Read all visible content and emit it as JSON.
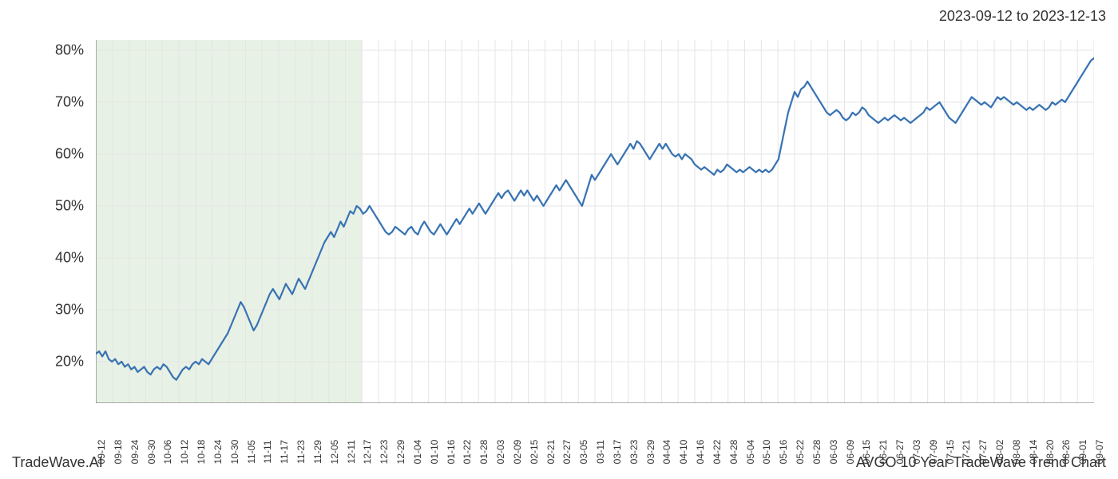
{
  "header": {
    "date_range": "2023-09-12 to 2023-12-13"
  },
  "footer": {
    "left": "TradeWave.AI",
    "right": "AVGO 10 Year TradeWave Trend Chart"
  },
  "chart": {
    "type": "line",
    "background_color": "#ffffff",
    "grid_color": "#e5e5e5",
    "axis_color": "#666666",
    "line_color": "#3873b3",
    "line_width": 2.2,
    "highlight_band": {
      "fill": "#d9e8d4",
      "opacity": 0.6,
      "x_start": 0,
      "x_end": 16
    },
    "y_axis": {
      "min": 12,
      "max": 82,
      "ticks": [
        20,
        30,
        40,
        50,
        60,
        70,
        80
      ],
      "tick_labels": [
        "20%",
        "30%",
        "40%",
        "50%",
        "60%",
        "70%",
        "80%"
      ],
      "label_fontsize": 18,
      "label_color": "#333333"
    },
    "x_axis": {
      "tick_labels": [
        "09-12",
        "09-18",
        "09-24",
        "09-30",
        "10-06",
        "10-12",
        "10-18",
        "10-24",
        "10-30",
        "11-05",
        "11-11",
        "11-17",
        "11-23",
        "11-29",
        "12-05",
        "12-11",
        "12-17",
        "12-23",
        "12-29",
        "01-04",
        "01-10",
        "01-16",
        "01-22",
        "01-28",
        "02-03",
        "02-09",
        "02-15",
        "02-21",
        "02-27",
        "03-05",
        "03-11",
        "03-17",
        "03-23",
        "03-29",
        "04-04",
        "04-10",
        "04-16",
        "04-22",
        "04-28",
        "05-04",
        "05-10",
        "05-16",
        "05-22",
        "05-28",
        "06-03",
        "06-09",
        "06-15",
        "06-21",
        "06-27",
        "07-03",
        "07-09",
        "07-15",
        "07-21",
        "07-27",
        "08-02",
        "08-08",
        "08-14",
        "08-20",
        "08-26",
        "09-01",
        "09-07"
      ],
      "label_fontsize": 12,
      "label_color": "#333333",
      "rotation": -90
    },
    "series": {
      "values": [
        21.5,
        22.0,
        21.0,
        22.0,
        20.5,
        20.0,
        20.5,
        19.5,
        20.0,
        19.0,
        19.5,
        18.5,
        19.0,
        18.0,
        18.5,
        19.0,
        18.0,
        17.5,
        18.5,
        19.0,
        18.5,
        19.5,
        19.0,
        18.0,
        17.0,
        16.5,
        17.5,
        18.5,
        19.0,
        18.5,
        19.5,
        20.0,
        19.5,
        20.5,
        20.0,
        19.5,
        20.5,
        21.5,
        22.5,
        23.5,
        24.5,
        25.5,
        27.0,
        28.5,
        30.0,
        31.5,
        30.5,
        29.0,
        27.5,
        26.0,
        27.0,
        28.5,
        30.0,
        31.5,
        33.0,
        34.0,
        33.0,
        32.0,
        33.5,
        35.0,
        34.0,
        33.0,
        34.5,
        36.0,
        35.0,
        34.0,
        35.5,
        37.0,
        38.5,
        40.0,
        41.5,
        43.0,
        44.0,
        45.0,
        44.0,
        45.5,
        47.0,
        46.0,
        47.5,
        49.0,
        48.5,
        50.0,
        49.5,
        48.5,
        49.0,
        50.0,
        49.0,
        48.0,
        47.0,
        46.0,
        45.0,
        44.5,
        45.0,
        46.0,
        45.5,
        45.0,
        44.5,
        45.5,
        46.0,
        45.0,
        44.5,
        46.0,
        47.0,
        46.0,
        45.0,
        44.5,
        45.5,
        46.5,
        45.5,
        44.5,
        45.5,
        46.5,
        47.5,
        46.5,
        47.5,
        48.5,
        49.5,
        48.5,
        49.5,
        50.5,
        49.5,
        48.5,
        49.5,
        50.5,
        51.5,
        52.5,
        51.5,
        52.5,
        53.0,
        52.0,
        51.0,
        52.0,
        53.0,
        52.0,
        53.0,
        52.0,
        51.0,
        52.0,
        51.0,
        50.0,
        51.0,
        52.0,
        53.0,
        54.0,
        53.0,
        54.0,
        55.0,
        54.0,
        53.0,
        52.0,
        51.0,
        50.0,
        52.0,
        54.0,
        56.0,
        55.0,
        56.0,
        57.0,
        58.0,
        59.0,
        60.0,
        59.0,
        58.0,
        59.0,
        60.0,
        61.0,
        62.0,
        61.0,
        62.5,
        62.0,
        61.0,
        60.0,
        59.0,
        60.0,
        61.0,
        62.0,
        61.0,
        62.0,
        61.0,
        60.0,
        59.5,
        60.0,
        59.0,
        60.0,
        59.5,
        59.0,
        58.0,
        57.5,
        57.0,
        57.5,
        57.0,
        56.5,
        56.0,
        57.0,
        56.5,
        57.0,
        58.0,
        57.5,
        57.0,
        56.5,
        57.0,
        56.5,
        57.0,
        57.5,
        57.0,
        56.5,
        57.0,
        56.5,
        57.0,
        56.5,
        57.0,
        58.0,
        59.0,
        62.0,
        65.0,
        68.0,
        70.0,
        72.0,
        71.0,
        72.5,
        73.0,
        74.0,
        73.0,
        72.0,
        71.0,
        70.0,
        69.0,
        68.0,
        67.5,
        68.0,
        68.5,
        68.0,
        67.0,
        66.5,
        67.0,
        68.0,
        67.5,
        68.0,
        69.0,
        68.5,
        67.5,
        67.0,
        66.5,
        66.0,
        66.5,
        67.0,
        66.5,
        67.0,
        67.5,
        67.0,
        66.5,
        67.0,
        66.5,
        66.0,
        66.5,
        67.0,
        67.5,
        68.0,
        69.0,
        68.5,
        69.0,
        69.5,
        70.0,
        69.0,
        68.0,
        67.0,
        66.5,
        66.0,
        67.0,
        68.0,
        69.0,
        70.0,
        71.0,
        70.5,
        70.0,
        69.5,
        70.0,
        69.5,
        69.0,
        70.0,
        71.0,
        70.5,
        71.0,
        70.5,
        70.0,
        69.5,
        70.0,
        69.5,
        69.0,
        68.5,
        69.0,
        68.5,
        69.0,
        69.5,
        69.0,
        68.5,
        69.0,
        70.0,
        69.5,
        70.0,
        70.5,
        70.0,
        71.0,
        72.0,
        73.0,
        74.0,
        75.0,
        76.0,
        77.0,
        78.0,
        78.5
      ]
    }
  }
}
